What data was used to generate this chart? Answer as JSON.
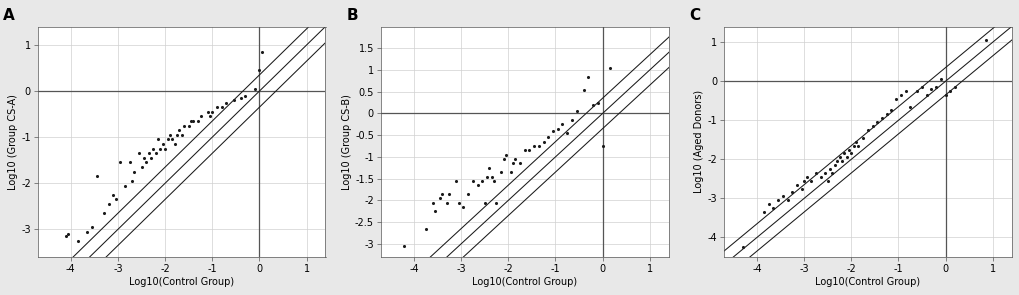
{
  "panel_A": {
    "label": "A",
    "ylabel": "Log10 (Group CS-A)",
    "xlabel": "Log10(Control Group)",
    "xlim": [
      -4.7,
      1.4
    ],
    "ylim": [
      -3.6,
      1.4
    ],
    "xticks": [
      -4,
      -3,
      -2,
      -1,
      0,
      1
    ],
    "yticks": [
      -3,
      -2,
      -1,
      0,
      1
    ],
    "scatter_x": [
      -4.1,
      -4.05,
      -3.85,
      -3.65,
      -3.55,
      -3.45,
      -3.3,
      -3.2,
      -3.1,
      -3.05,
      -2.95,
      -2.85,
      -2.75,
      -2.7,
      -2.65,
      -2.55,
      -2.5,
      -2.45,
      -2.4,
      -2.35,
      -2.3,
      -2.25,
      -2.2,
      -2.15,
      -2.1,
      -2.05,
      -2.0,
      -1.95,
      -1.9,
      -1.85,
      -1.8,
      -1.75,
      -1.7,
      -1.65,
      -1.6,
      -1.5,
      -1.45,
      -1.4,
      -1.3,
      -1.25,
      -1.1,
      -1.05,
      -1.0,
      -0.9,
      -0.8,
      -0.7,
      -0.55,
      -0.4,
      -0.3,
      -0.1,
      0.0,
      0.05
    ],
    "scatter_y": [
      -3.15,
      -3.1,
      -3.25,
      -3.05,
      -2.95,
      -1.85,
      -2.65,
      -2.45,
      -2.25,
      -2.35,
      -1.55,
      -2.05,
      -1.55,
      -1.95,
      -1.75,
      -1.35,
      -1.65,
      -1.45,
      -1.55,
      -1.35,
      -1.45,
      -1.25,
      -1.35,
      -1.05,
      -1.25,
      -1.15,
      -1.25,
      -1.05,
      -0.95,
      -1.05,
      -1.15,
      -0.95,
      -0.85,
      -0.95,
      -0.75,
      -0.75,
      -0.65,
      -0.65,
      -0.65,
      -0.55,
      -0.45,
      -0.55,
      -0.45,
      -0.35,
      -0.35,
      -0.25,
      -0.2,
      -0.15,
      -0.1,
      0.05,
      0.45,
      0.85
    ],
    "line_slope": 1.0,
    "line_intercept": 0.0,
    "band_offsets": [
      0.35,
      -0.35
    ],
    "hline_y": 0.0,
    "vline_x": 0.0
  },
  "panel_B": {
    "label": "B",
    "ylabel": "Log10 (Group CS-B)",
    "xlabel": "Log10(Control Group)",
    "xlim": [
      -4.7,
      1.4
    ],
    "ylim": [
      -3.3,
      2.0
    ],
    "xticks": [
      -4,
      -3,
      -2,
      -1,
      0,
      1
    ],
    "yticks": [
      -3,
      -2.5,
      -2,
      -1.5,
      -1,
      -0.5,
      0,
      0.5,
      1,
      1.5
    ],
    "scatter_x": [
      -4.2,
      -3.75,
      -3.6,
      -3.55,
      -3.45,
      -3.4,
      -3.3,
      -3.25,
      -3.1,
      -3.05,
      -2.95,
      -2.85,
      -2.75,
      -2.65,
      -2.55,
      -2.5,
      -2.45,
      -2.4,
      -2.35,
      -2.3,
      -2.25,
      -2.15,
      -2.1,
      -2.05,
      -1.95,
      -1.9,
      -1.85,
      -1.75,
      -1.65,
      -1.55,
      -1.45,
      -1.35,
      -1.25,
      -1.15,
      -1.05,
      -0.95,
      -0.85,
      -0.75,
      -0.65,
      -0.55,
      -0.4,
      -0.3,
      -0.2,
      -0.1,
      0.0,
      0.15
    ],
    "scatter_y": [
      -3.05,
      -2.65,
      -2.05,
      -2.25,
      -1.95,
      -1.85,
      -2.05,
      -1.85,
      -1.55,
      -2.05,
      -2.15,
      -1.85,
      -1.55,
      -1.65,
      -1.55,
      -2.05,
      -1.45,
      -1.25,
      -1.45,
      -1.55,
      -2.05,
      -1.35,
      -1.05,
      -0.95,
      -1.35,
      -1.15,
      -1.05,
      -1.15,
      -0.85,
      -0.85,
      -0.75,
      -0.75,
      -0.65,
      -0.55,
      -0.4,
      -0.35,
      -0.25,
      -0.45,
      -0.15,
      0.05,
      0.55,
      0.85,
      0.2,
      0.25,
      -0.75,
      1.05
    ],
    "line_slope": 1.0,
    "line_intercept": 0.0,
    "band_offsets": [
      0.35,
      -0.35
    ],
    "hline_y": 0.0,
    "vline_x": 0.0
  },
  "panel_C": {
    "label": "C",
    "ylabel": "Log10 (Aged Donors)",
    "xlabel": "Log10(Control Group)",
    "xlim": [
      -4.7,
      1.4
    ],
    "ylim": [
      -4.5,
      1.4
    ],
    "xticks": [
      -4,
      -3,
      -2,
      -1,
      0,
      1
    ],
    "yticks": [
      -4,
      -3,
      -2,
      -1,
      0,
      1
    ],
    "scatter_x": [
      -4.3,
      -3.85,
      -3.75,
      -3.65,
      -3.55,
      -3.45,
      -3.35,
      -3.25,
      -3.15,
      -3.05,
      -3.0,
      -2.95,
      -2.85,
      -2.75,
      -2.65,
      -2.55,
      -2.5,
      -2.45,
      -2.4,
      -2.35,
      -2.3,
      -2.25,
      -2.2,
      -2.15,
      -2.1,
      -2.05,
      -2.0,
      -1.95,
      -1.9,
      -1.85,
      -1.75,
      -1.65,
      -1.55,
      -1.45,
      -1.35,
      -1.25,
      -1.15,
      -1.05,
      -0.95,
      -0.85,
      -0.75,
      -0.6,
      -0.5,
      -0.4,
      -0.3,
      -0.2,
      -0.1,
      0.0,
      0.1,
      0.2,
      0.85
    ],
    "scatter_y": [
      -4.25,
      -3.35,
      -3.15,
      -3.25,
      -3.05,
      -2.95,
      -3.05,
      -2.85,
      -2.65,
      -2.75,
      -2.55,
      -2.45,
      -2.55,
      -2.35,
      -2.45,
      -2.35,
      -2.55,
      -2.25,
      -2.35,
      -2.15,
      -2.05,
      -1.95,
      -2.05,
      -1.85,
      -1.95,
      -1.75,
      -1.85,
      -1.65,
      -1.55,
      -1.65,
      -1.45,
      -1.25,
      -1.15,
      -1.05,
      -0.95,
      -0.85,
      -0.75,
      -0.45,
      -0.35,
      -0.25,
      -0.65,
      -0.25,
      -0.15,
      -0.35,
      -0.2,
      -0.15,
      0.05,
      -0.35,
      -0.25,
      -0.15,
      1.05
    ],
    "line_slope": 1.0,
    "line_intercept": 0.0,
    "band_offsets": [
      0.35,
      -0.35
    ],
    "hline_y": 0.0,
    "vline_x": 0.0
  },
  "dot_color": "#1a1a1a",
  "dot_size": 5,
  "line_color": "#1a1a1a",
  "grid_color": "#d0d0d0",
  "bg_figure": "#e8e8e8",
  "bg_axes": "#ffffff",
  "label_fontsize": 11,
  "tick_fontsize": 7,
  "axis_label_fontsize": 7
}
